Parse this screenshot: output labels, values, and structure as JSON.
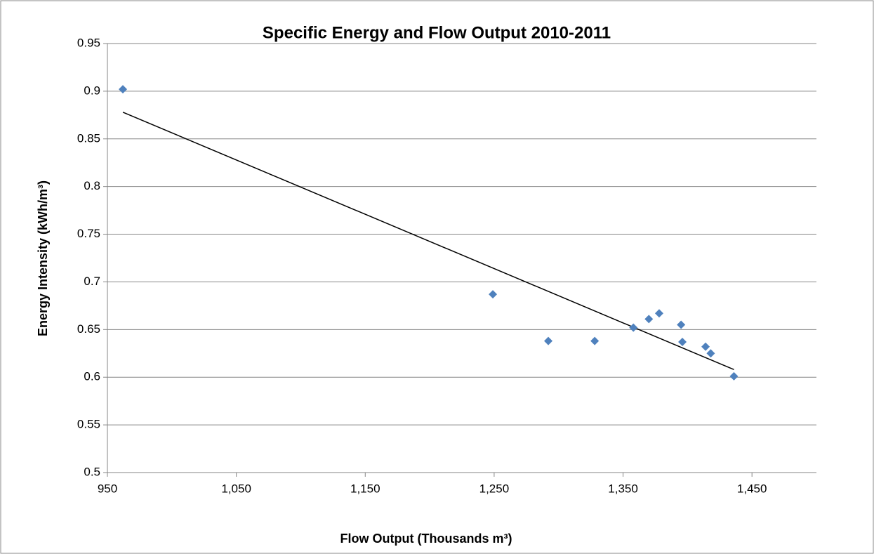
{
  "chart_data": {
    "type": "scatter",
    "title": "Specific Energy and Flow Output 2010-2011",
    "x_label": "Flow Output (Thousands m³)",
    "y_label": "Energy Intensity (kWh/m³)",
    "series": [
      {
        "color": "#4f81bd",
        "x": [
          962,
          1249,
          1292,
          1328,
          1358,
          1370,
          1378,
          1395,
          1396,
          1414,
          1418,
          1436
        ],
        "values": [
          0.902,
          0.687,
          0.638,
          0.638,
          0.652,
          0.661,
          0.667,
          0.655,
          0.637,
          0.632,
          0.625,
          0.601
        ]
      }
    ],
    "trendline": {
      "color": "#000000",
      "x": [
        962,
        1436
      ],
      "values": [
        0.878,
        0.608
      ]
    },
    "xlim": [
      950,
      1500
    ],
    "xticks": [
      950,
      {
        "value": 1050,
        "label": "1,050"
      },
      {
        "value": 1150,
        "label": "1,150"
      },
      {
        "value": 1250,
        "label": "1,250"
      },
      {
        "value": 1350,
        "label": "1,350"
      },
      {
        "value": 1450,
        "label": "1,450"
      }
    ],
    "ylim": [
      0.5,
      0.95
    ],
    "yticks": [
      0.5,
      0.55,
      0.6,
      0.65,
      0.7,
      0.75,
      0.8,
      0.85,
      0.9,
      0.95
    ],
    "grid": true
  }
}
